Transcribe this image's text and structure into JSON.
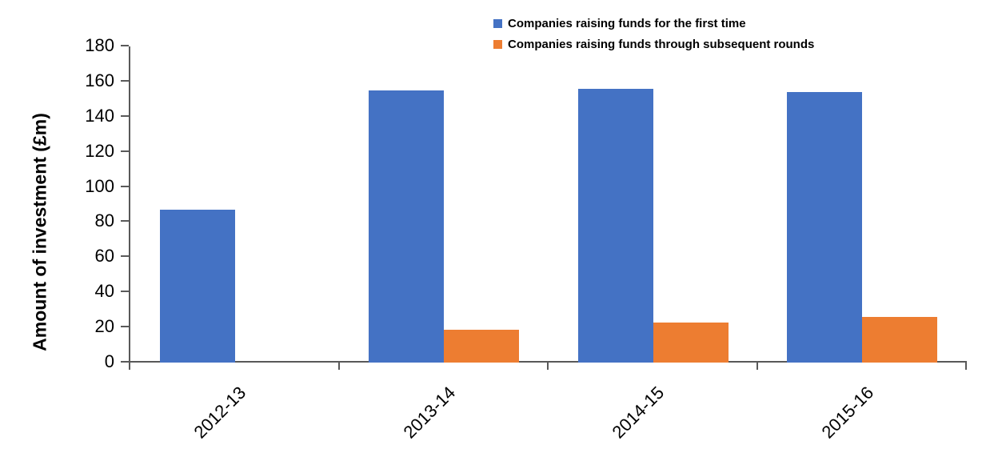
{
  "chart_data": {
    "type": "bar",
    "title": "",
    "xlabel": "",
    "ylabel": "Amount of investment (£m)",
    "ylim": [
      0,
      180
    ],
    "ytick_step": 20,
    "grid": false,
    "legend_position": "top-center",
    "categories": [
      "2012-13",
      "2013-14",
      "2014-15",
      "2015-16"
    ],
    "series": [
      {
        "name": "Companies raising funds for the first time",
        "color": "#4472C4",
        "values": [
          87,
          155,
          156,
          154
        ]
      },
      {
        "name": "Companies raising funds through subsequent rounds",
        "color": "#ED7D31",
        "values": [
          0,
          18.5,
          23,
          26
        ]
      }
    ],
    "colors": {
      "axis": "#595959",
      "text": "#000000",
      "background": "#FFFFFF"
    }
  }
}
